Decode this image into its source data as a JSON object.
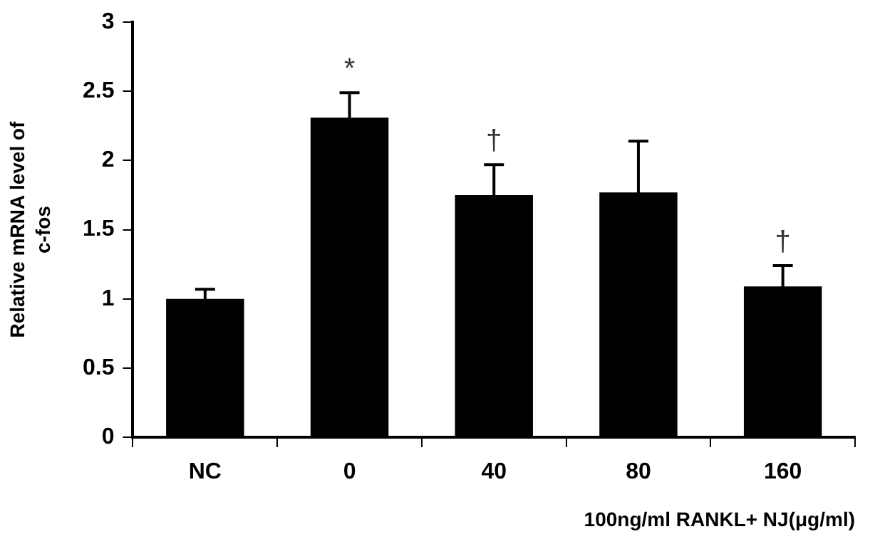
{
  "chart_data": {
    "type": "bar",
    "ylabel": "Relative mRNA level of c-fos",
    "xlabel": "100ng/ml RANKL+ NJ(μg/ml)",
    "categories": [
      "NC",
      "0",
      "40",
      "80",
      "160"
    ],
    "values": [
      1.0,
      2.31,
      1.75,
      1.77,
      1.09
    ],
    "errors": [
      0.07,
      0.18,
      0.22,
      0.37,
      0.15
    ],
    "color": "#000000",
    "ylim": [
      0,
      3
    ],
    "yticks": [
      0,
      0.5,
      1,
      1.5,
      2,
      2.5,
      3
    ],
    "grid": false,
    "legend": false,
    "annotations": [
      {
        "text": "*",
        "x": "0",
        "y": 2.31
      },
      {
        "text": "†",
        "x": "40",
        "y": 1.75
      },
      {
        "text": "†",
        "x": "160",
        "y": 1.09
      }
    ]
  }
}
